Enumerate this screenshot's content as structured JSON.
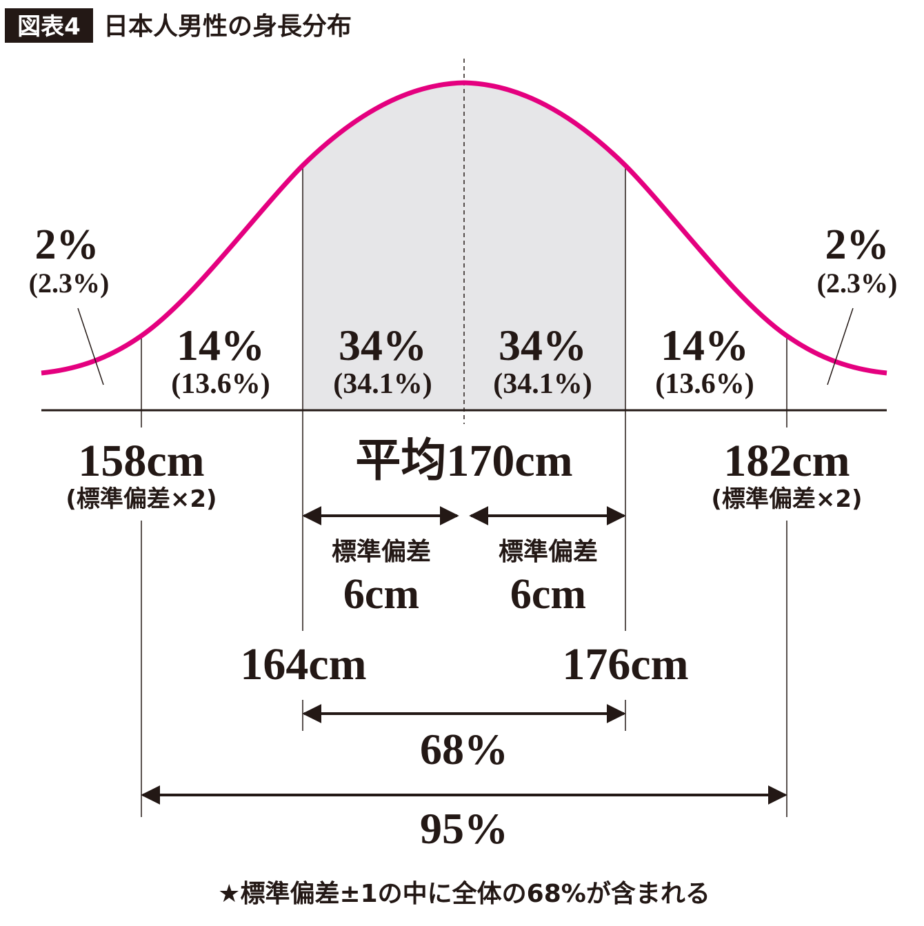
{
  "header": {
    "badge": "図表4",
    "title": "日本人男性の身長分布"
  },
  "colors": {
    "curve": "#e4007f",
    "shade": "#e6e6e8",
    "ink": "#231815"
  },
  "segments": [
    {
      "pct": "2%",
      "exact": "(2.3%)"
    },
    {
      "pct": "14%",
      "exact": "(13.6%)"
    },
    {
      "pct": "34%",
      "exact": "(34.1%)"
    },
    {
      "pct": "34%",
      "exact": "(34.1%)"
    },
    {
      "pct": "14%",
      "exact": "(13.6%)"
    },
    {
      "pct": "2%",
      "exact": "(2.3%)"
    }
  ],
  "axis": {
    "left2sd": {
      "value": "158cm",
      "note": "(標準偏差×2)"
    },
    "mean": "平均170cm",
    "right2sd": {
      "value": "182cm",
      "note": "(標準偏差×2)"
    },
    "left1sd": "164cm",
    "right1sd": "176cm"
  },
  "sd_labels": [
    {
      "label": "標準偏差",
      "value": "6cm"
    },
    {
      "label": "標準偏差",
      "value": "6cm"
    }
  ],
  "ranges": {
    "one_sd": "68%",
    "two_sd": "95%"
  },
  "footer": "★標準偏差±1の中に全体の68%が含まれる"
}
